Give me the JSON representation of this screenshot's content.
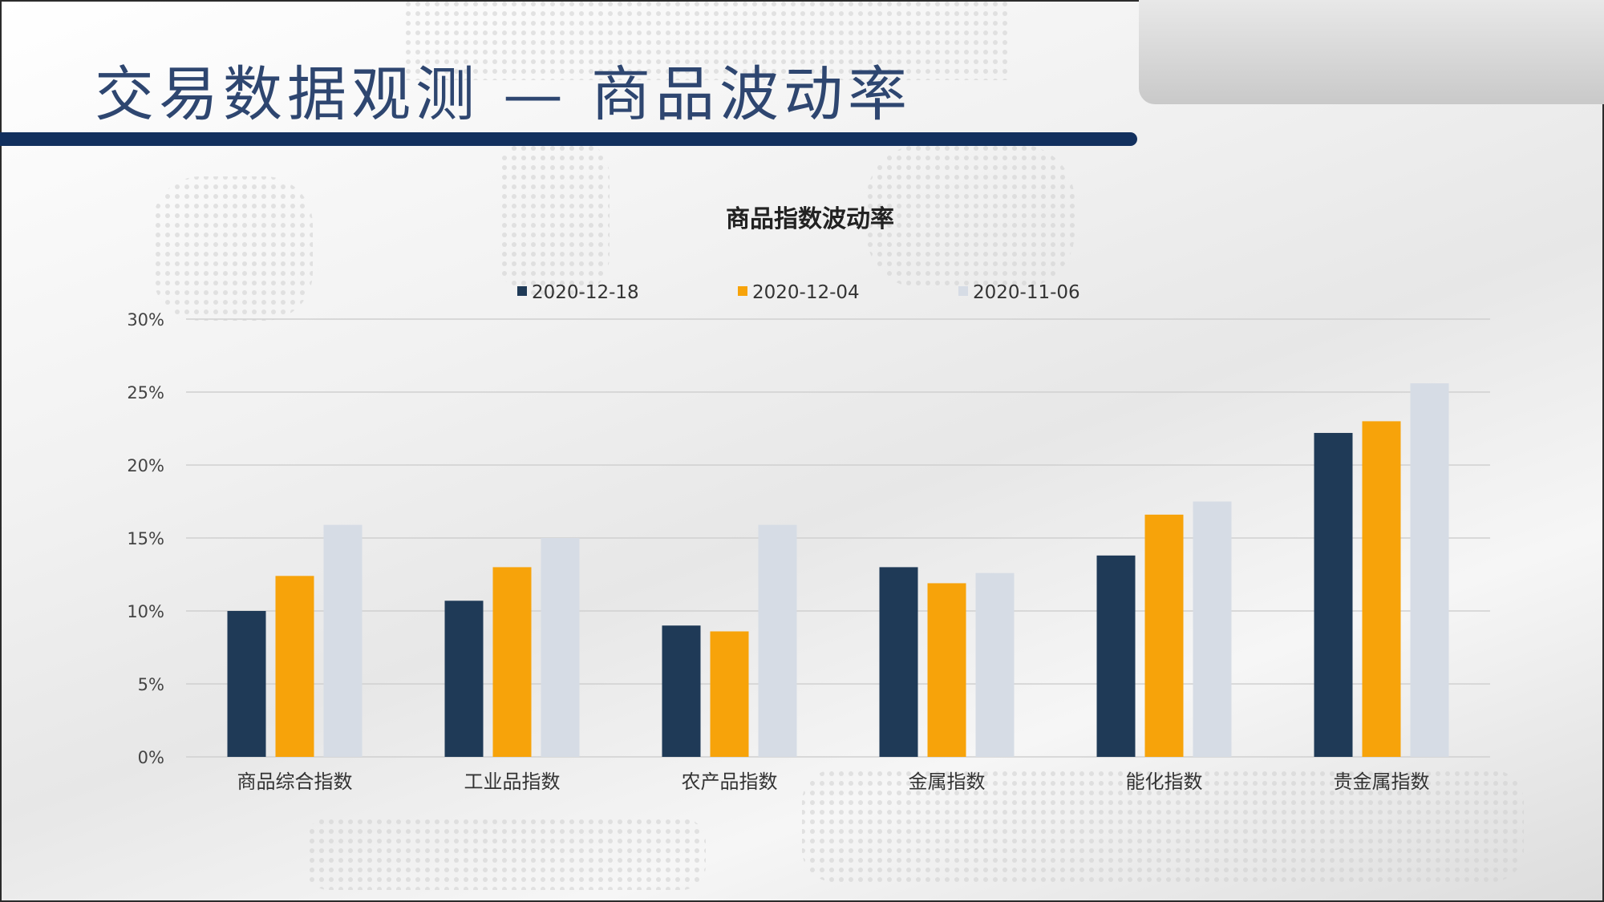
{
  "slide": {
    "title": "交易数据观测 — 商品波动率"
  },
  "colors": {
    "title": "#2e4670",
    "title_bar": "#12305e",
    "series": [
      "#1f3a57",
      "#f7a30a",
      "#d6dce5"
    ]
  },
  "chart_data": {
    "type": "bar",
    "title": "商品指数波动率",
    "categories": [
      "商品综合指数",
      "工业品指数",
      "农产品指数",
      "金属指数",
      "能化指数",
      "贵金属指数"
    ],
    "series": [
      {
        "name": "2020-12-18",
        "values": [
          10.0,
          10.7,
          9.0,
          13.0,
          13.8,
          22.2
        ]
      },
      {
        "name": "2020-12-04",
        "values": [
          12.4,
          13.0,
          8.6,
          11.9,
          16.6,
          23.0
        ]
      },
      {
        "name": "2020-11-06",
        "values": [
          15.9,
          15.0,
          15.9,
          12.6,
          17.5,
          25.6
        ]
      }
    ],
    "ylim": [
      0,
      30
    ],
    "yticks": [
      0,
      5,
      10,
      15,
      20,
      25,
      30
    ],
    "ytick_labels": [
      "0%",
      "5%",
      "10%",
      "15%",
      "20%",
      "25%",
      "30%"
    ],
    "grid": true,
    "legend_position": "top"
  }
}
